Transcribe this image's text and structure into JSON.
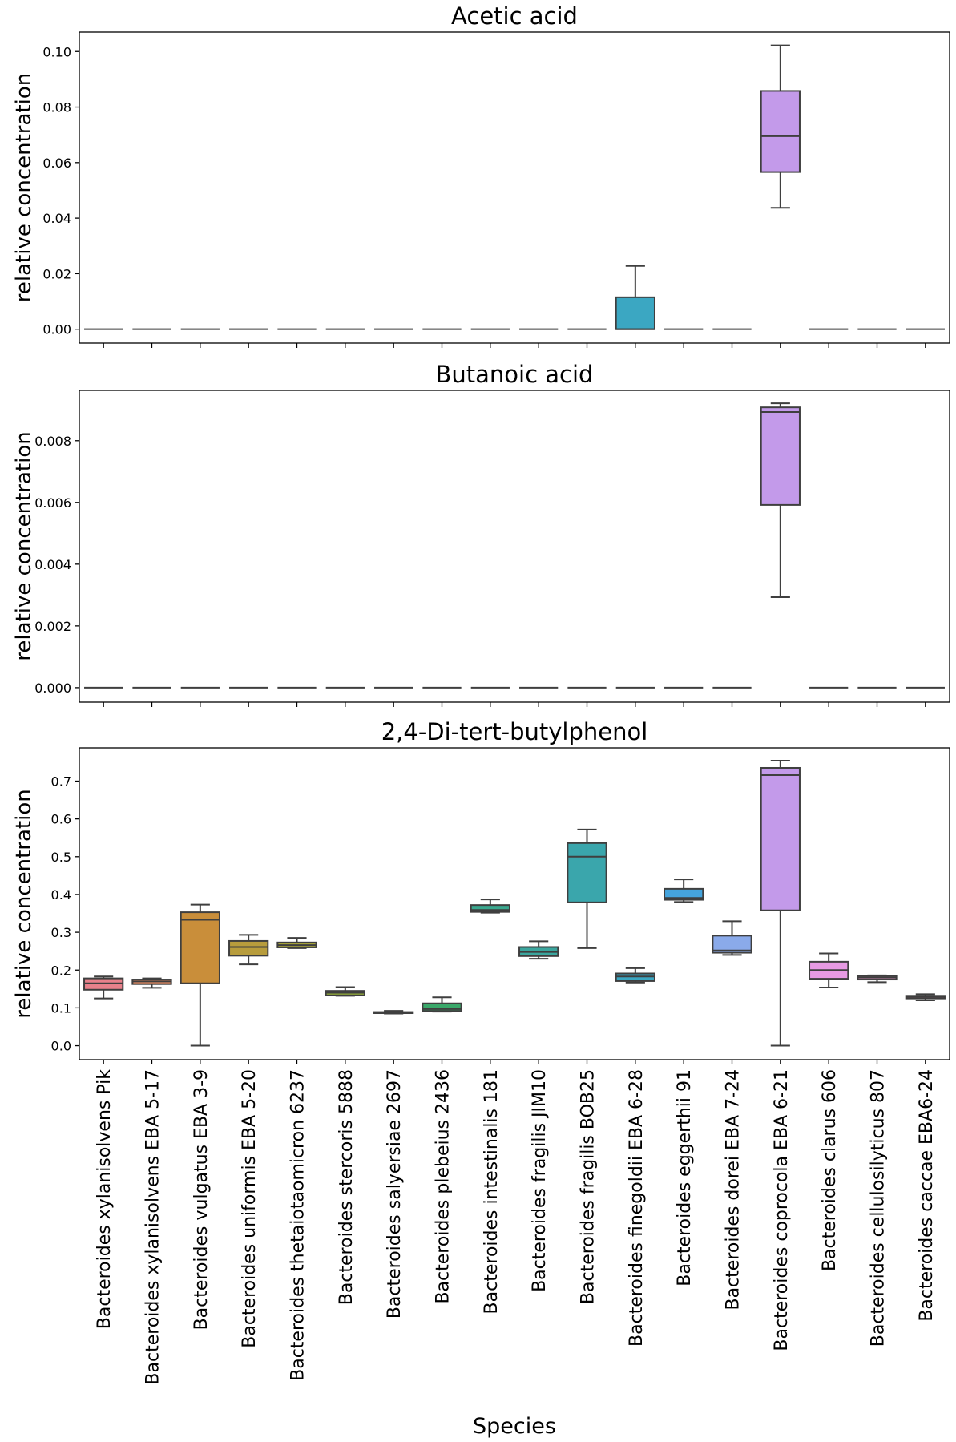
{
  "chart_data": {
    "type": "boxplot",
    "figure_xlabel": "Species",
    "categories": [
      "Bacteroides xylanisolvens Pik",
      "Bacteroides xylanisolvens EBA 5-17",
      "Bacteroides vulgatus EBA 3-9",
      "Bacteroides uniformis EBA 5-20",
      "Bacteroides thetaiotaomicron 6237",
      "Bacteroides stercoris 5888",
      "Bacteroides salyersiae 2697",
      "Bacteroides plebeius 2436",
      "Bacteroides intestinalis 181",
      "Bacteroides fragilis JIM10",
      "Bacteroides fragilis BOB25",
      "Bacteroides finegoldii EBA 6-28",
      "Bacteroides eggerthii 91",
      "Bacteroides dorei EBA 7-24",
      "Bacteroides coprocola EBA 6-21",
      "Bacteroides clarus 606",
      "Bacteroides cellulosilyticus 807",
      "Bacteroides caccae EBA6-24"
    ],
    "colors": [
      "#e8818b",
      "#e38c63",
      "#c98e3a",
      "#b79c3c",
      "#a3a03b",
      "#8fa83a",
      "#5fb13f",
      "#3aa86a",
      "#3aa88f",
      "#3ba69e",
      "#3aa6ac",
      "#3ba7c2",
      "#45a4dd",
      "#8aaaea",
      "#c39aea",
      "#e79ae3",
      "#ea92c9",
      "#e88aa9"
    ],
    "subplots": [
      {
        "title": "Acetic acid",
        "ylabel": "relative concentration",
        "ylim": [
          -0.005,
          0.107
        ],
        "yticks": [
          "0.00",
          "0.02",
          "0.04",
          "0.06",
          "0.08",
          "0.10"
        ],
        "ytick_values": [
          0,
          0.02,
          0.04,
          0.06,
          0.08,
          0.1
        ],
        "boxes": [
          {
            "min": 0,
            "q1": 0,
            "median": 0,
            "q3": 0,
            "max": 0
          },
          {
            "min": 0,
            "q1": 0,
            "median": 0,
            "q3": 0,
            "max": 0
          },
          {
            "min": 0,
            "q1": 0,
            "median": 0,
            "q3": 0,
            "max": 0
          },
          {
            "min": 0,
            "q1": 0,
            "median": 0,
            "q3": 0,
            "max": 0
          },
          {
            "min": 0,
            "q1": 0,
            "median": 0,
            "q3": 0,
            "max": 0
          },
          {
            "min": 0,
            "q1": 0,
            "median": 0,
            "q3": 0,
            "max": 0
          },
          {
            "min": 0,
            "q1": 0,
            "median": 0,
            "q3": 0,
            "max": 0
          },
          {
            "min": 0,
            "q1": 0,
            "median": 0,
            "q3": 0,
            "max": 0
          },
          {
            "min": 0,
            "q1": 0,
            "median": 0,
            "q3": 0,
            "max": 0
          },
          {
            "min": 0,
            "q1": 0,
            "median": 0,
            "q3": 0,
            "max": 0
          },
          {
            "min": 0,
            "q1": 0,
            "median": 0,
            "q3": 0,
            "max": 0
          },
          {
            "min": 0,
            "q1": 0,
            "median": 0,
            "q3": 0.0115,
            "max": 0.0228
          },
          {
            "min": 0,
            "q1": 0,
            "median": 0,
            "q3": 0,
            "max": 0
          },
          {
            "min": 0,
            "q1": 0,
            "median": 0,
            "q3": 0,
            "max": 0
          },
          {
            "min": 0.0437,
            "q1": 0.0566,
            "median": 0.0695,
            "q3": 0.0858,
            "max": 0.1022
          },
          {
            "min": 0,
            "q1": 0,
            "median": 0,
            "q3": 0,
            "max": 0
          },
          {
            "min": 0,
            "q1": 0,
            "median": 0,
            "q3": 0,
            "max": 0
          },
          {
            "min": 0,
            "q1": 0,
            "median": 0,
            "q3": 0,
            "max": 0
          }
        ]
      },
      {
        "title": "Butanoic acid",
        "ylabel": "relative concentration",
        "ylim": [
          -0.00047,
          0.00963
        ],
        "yticks": [
          "0.000",
          "0.002",
          "0.004",
          "0.006",
          "0.008"
        ],
        "ytick_values": [
          0,
          0.002,
          0.004,
          0.006,
          0.008
        ],
        "boxes": [
          {
            "min": 0,
            "q1": 0,
            "median": 0,
            "q3": 0,
            "max": 0
          },
          {
            "min": 0,
            "q1": 0,
            "median": 0,
            "q3": 0,
            "max": 0
          },
          {
            "min": 0,
            "q1": 0,
            "median": 0,
            "q3": 0,
            "max": 0
          },
          {
            "min": 0,
            "q1": 0,
            "median": 0,
            "q3": 0,
            "max": 0
          },
          {
            "min": 0,
            "q1": 0,
            "median": 0,
            "q3": 0,
            "max": 0
          },
          {
            "min": 0,
            "q1": 0,
            "median": 0,
            "q3": 0,
            "max": 0
          },
          {
            "min": 0,
            "q1": 0,
            "median": 0,
            "q3": 0,
            "max": 0
          },
          {
            "min": 0,
            "q1": 0,
            "median": 0,
            "q3": 0,
            "max": 0
          },
          {
            "min": 0,
            "q1": 0,
            "median": 0,
            "q3": 0,
            "max": 0
          },
          {
            "min": 0,
            "q1": 0,
            "median": 0,
            "q3": 0,
            "max": 0
          },
          {
            "min": 0,
            "q1": 0,
            "median": 0,
            "q3": 0,
            "max": 0
          },
          {
            "min": 0,
            "q1": 0,
            "median": 0,
            "q3": 0,
            "max": 0
          },
          {
            "min": 0,
            "q1": 0,
            "median": 0,
            "q3": 0,
            "max": 0
          },
          {
            "min": 0,
            "q1": 0,
            "median": 0,
            "q3": 0,
            "max": 0
          },
          {
            "min": 0.00293,
            "q1": 0.00592,
            "median": 0.00893,
            "q3": 0.00908,
            "max": 0.00921
          },
          {
            "min": 0,
            "q1": 0,
            "median": 0,
            "q3": 0,
            "max": 0
          },
          {
            "min": 0,
            "q1": 0,
            "median": 0,
            "q3": 0,
            "max": 0
          },
          {
            "min": 0,
            "q1": 0,
            "median": 0,
            "q3": 0,
            "max": 0
          }
        ]
      },
      {
        "title": "2,4-Di-tert-butylphenol",
        "ylabel": "relative concentration",
        "ylim": [
          -0.037,
          0.788
        ],
        "yticks": [
          "0.0",
          "0.1",
          "0.2",
          "0.3",
          "0.4",
          "0.5",
          "0.6",
          "0.7"
        ],
        "ytick_values": [
          0,
          0.1,
          0.2,
          0.3,
          0.4,
          0.5,
          0.6,
          0.7
        ],
        "boxes": [
          {
            "min": 0.125,
            "q1": 0.148,
            "median": 0.165,
            "q3": 0.178,
            "max": 0.183
          },
          {
            "min": 0.153,
            "q1": 0.163,
            "median": 0.17,
            "q3": 0.175,
            "max": 0.178
          },
          {
            "min": 0.0,
            "q1": 0.165,
            "median": 0.333,
            "q3": 0.353,
            "max": 0.373
          },
          {
            "min": 0.215,
            "q1": 0.238,
            "median": 0.261,
            "q3": 0.277,
            "max": 0.293
          },
          {
            "min": 0.258,
            "q1": 0.26,
            "median": 0.266,
            "q3": 0.273,
            "max": 0.285
          },
          {
            "min": 0.132,
            "q1": 0.133,
            "median": 0.14,
            "q3": 0.145,
            "max": 0.155
          },
          {
            "min": 0.085,
            "q1": 0.086,
            "median": 0.088,
            "q3": 0.089,
            "max": 0.092
          },
          {
            "min": 0.09,
            "q1": 0.092,
            "median": 0.097,
            "q3": 0.112,
            "max": 0.128
          },
          {
            "min": 0.352,
            "q1": 0.354,
            "median": 0.359,
            "q3": 0.372,
            "max": 0.387
          },
          {
            "min": 0.23,
            "q1": 0.237,
            "median": 0.248,
            "q3": 0.261,
            "max": 0.276
          },
          {
            "min": 0.258,
            "q1": 0.379,
            "median": 0.5,
            "q3": 0.536,
            "max": 0.572
          },
          {
            "min": 0.167,
            "q1": 0.171,
            "median": 0.183,
            "q3": 0.191,
            "max": 0.205
          },
          {
            "min": 0.38,
            "q1": 0.386,
            "median": 0.391,
            "q3": 0.415,
            "max": 0.44
          },
          {
            "min": 0.24,
            "q1": 0.246,
            "median": 0.252,
            "q3": 0.291,
            "max": 0.329
          },
          {
            "min": 0.0,
            "q1": 0.358,
            "median": 0.716,
            "q3": 0.735,
            "max": 0.754
          },
          {
            "min": 0.154,
            "q1": 0.177,
            "median": 0.2,
            "q3": 0.222,
            "max": 0.244
          },
          {
            "min": 0.168,
            "q1": 0.175,
            "median": 0.18,
            "q3": 0.184,
            "max": 0.186
          },
          {
            "min": 0.12,
            "q1": 0.125,
            "median": 0.129,
            "q3": 0.132,
            "max": 0.136
          }
        ]
      }
    ]
  }
}
